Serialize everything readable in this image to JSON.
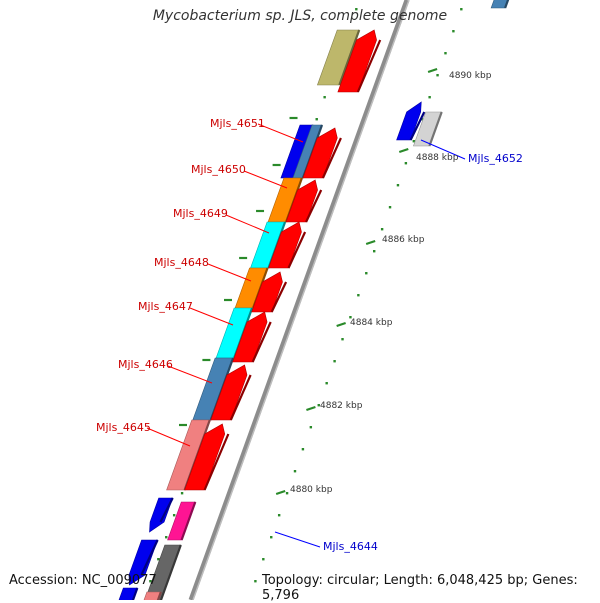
{
  "title": "Mycobacterium sp. JLS, complete genome",
  "accession": "Accession: NC_009077",
  "summary": "Topology: circular; Length: 6,048,425 bp; Genes: 5,796",
  "scale_ticks": [
    {
      "id": "tick-4880",
      "label": "4880 kbp"
    },
    {
      "id": "tick-4882",
      "label": "4882 kbp"
    },
    {
      "id": "tick-4884",
      "label": "4884 kbp"
    },
    {
      "id": "tick-4886",
      "label": "4886 kbp"
    },
    {
      "id": "tick-4888",
      "label": "4888 kbp"
    },
    {
      "id": "tick-4890",
      "label": "4890 kbp"
    }
  ],
  "gene_labels": [
    {
      "id": "mjls-4651",
      "label": "Mjls_4651",
      "color": "#cc0000"
    },
    {
      "id": "mjls-4650",
      "label": "Mjls_4650",
      "color": "#cc0000"
    },
    {
      "id": "mjls-4649",
      "label": "Mjls_4649",
      "color": "#cc0000"
    },
    {
      "id": "mjls-4648",
      "label": "Mjls_4648",
      "color": "#cc0000"
    },
    {
      "id": "mjls-4647",
      "label": "Mjls_4647",
      "color": "#cc0000"
    },
    {
      "id": "mjls-4646",
      "label": "Mjls_4646",
      "color": "#cc0000"
    },
    {
      "id": "mjls-4645",
      "label": "Mjls_4645",
      "color": "#cc0000"
    },
    {
      "id": "mjls-4652",
      "label": "Mjls_4652",
      "color": "#0000cc"
    },
    {
      "id": "mjls-4644",
      "label": "Mjls_4644",
      "color": "#0000cc"
    }
  ],
  "colors": {
    "backbone": "#8c8c8c",
    "dots": "#2a8a2a",
    "red": "#ff0000",
    "blue": "#0000ee",
    "steelblue": "#4682b4",
    "orange": "#ff8c00",
    "cyan": "#00ffff",
    "salmon": "#f08080",
    "khaki": "#bdb76b",
    "silver": "#d3d3d3",
    "magenta": "#ff1493",
    "gray": "#666666"
  }
}
